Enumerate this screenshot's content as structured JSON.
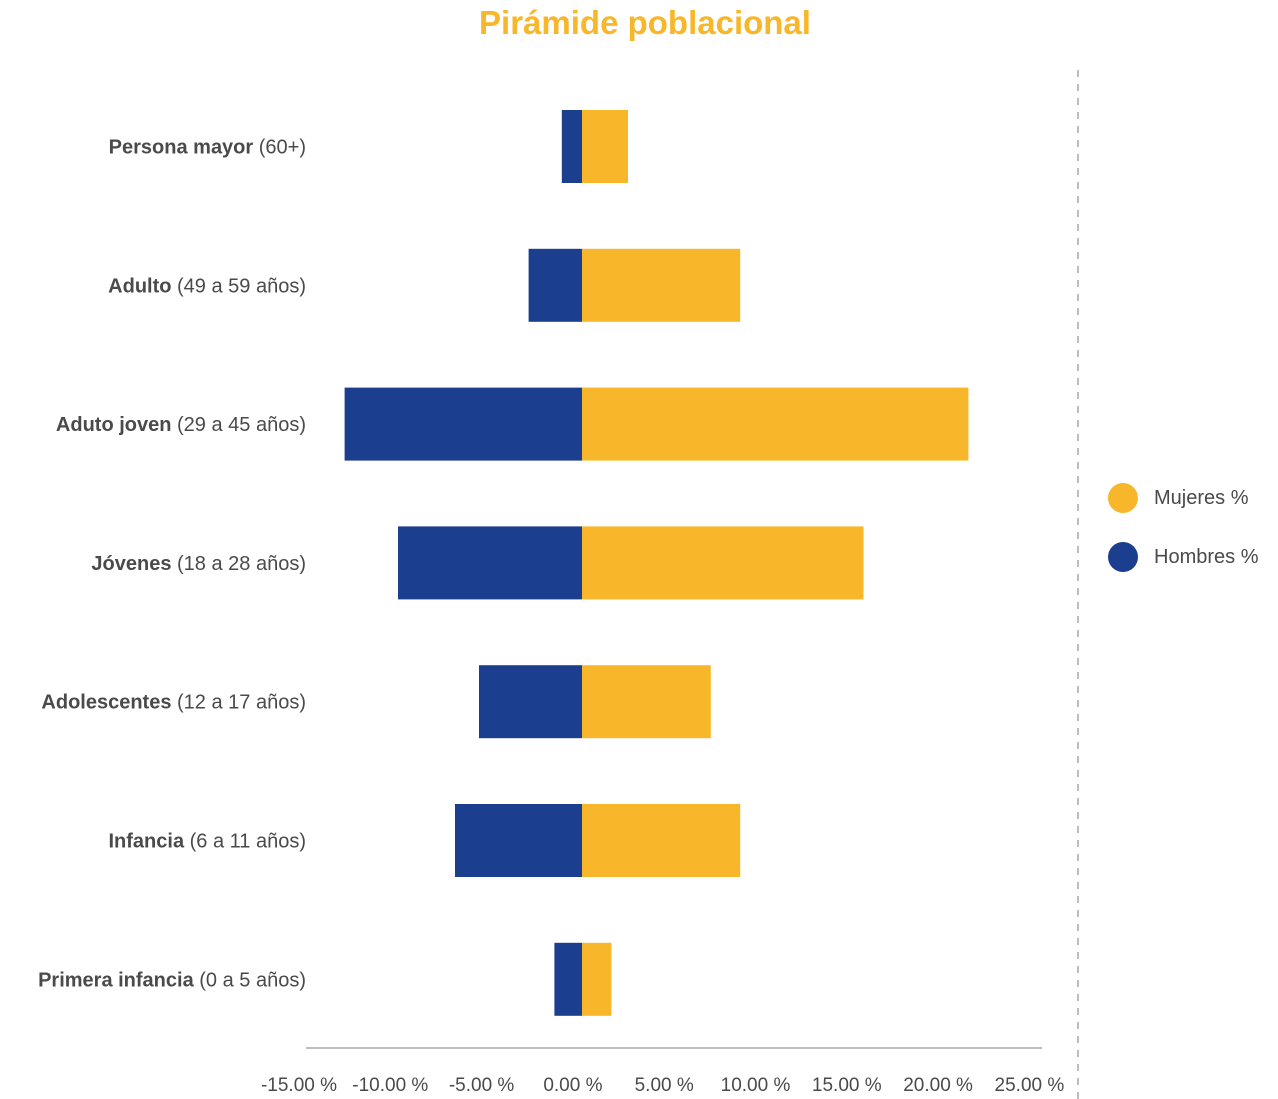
{
  "colors": {
    "mujeres": "#F8B72A",
    "hombres": "#1C3E8E",
    "axis": "#bdbdbd",
    "divider": "#bdbdbd"
  },
  "chart_data": {
    "type": "bar",
    "orientation": "horizontal",
    "title": "Pirámide poblacional",
    "categories": [
      {
        "bold": "Persona mayor",
        "rest": " (60+)"
      },
      {
        "bold": "Adulto",
        "rest": " (49 a 59 años)"
      },
      {
        "bold": "Aduto joven",
        "rest": " (29 a 45 años)"
      },
      {
        "bold": "Jóvenes",
        "rest": " (18 a 28 años)"
      },
      {
        "bold": "Adolescentes",
        "rest": " (12 a 17 años)"
      },
      {
        "bold": "Infancia",
        "rest": " (6 a 11 años)"
      },
      {
        "bold": "Primera infancia",
        "rest": " (0 a 5 años)"
      }
    ],
    "series": [
      {
        "name": "Mujeres %",
        "color": "#F8B72A",
        "values": [
          2.5,
          8.6,
          21.0,
          15.3,
          7.0,
          8.6,
          1.6
        ]
      },
      {
        "name": "Hombres %",
        "color": "#1C3E8E",
        "values": [
          -1.1,
          -2.9,
          -12.9,
          -10.0,
          -5.6,
          -6.9,
          -1.5
        ]
      }
    ],
    "xlim": [
      -15,
      25
    ],
    "xticks": [
      "-15.00 %",
      "-10.00 %",
      "-5.00 %",
      "0.00 %",
      "5.00 %",
      "10.00 %",
      "15.00 %",
      "20.00 %",
      "25.00 %"
    ],
    "xtick_values": [
      -15,
      -10,
      -5,
      0,
      5,
      10,
      15,
      20,
      25
    ],
    "legend_position": "right",
    "legend": [
      "Mujeres %",
      "Hombres %"
    ]
  }
}
